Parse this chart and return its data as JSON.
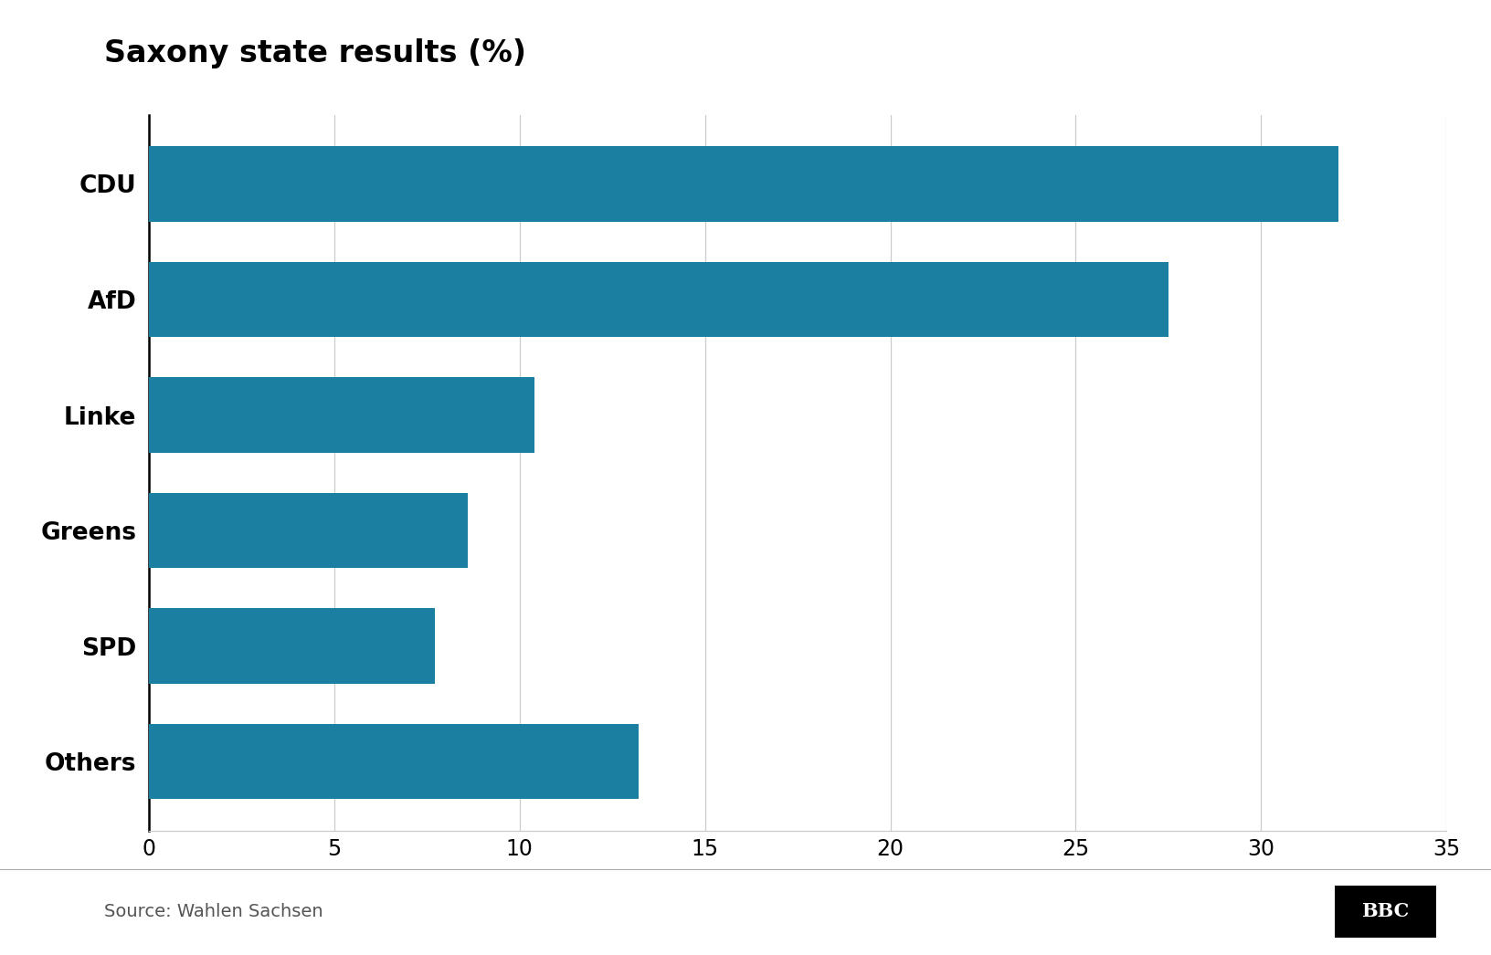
{
  "title": "Saxony state results (%)",
  "categories": [
    "CDU",
    "AfD",
    "Linke",
    "Greens",
    "SPD",
    "Others"
  ],
  "values": [
    32.1,
    27.5,
    10.4,
    8.6,
    7.7,
    13.2
  ],
  "bar_color": "#1a7fa0",
  "xlim": [
    0,
    35
  ],
  "xticks": [
    0,
    5,
    10,
    15,
    20,
    25,
    30,
    35
  ],
  "background_color": "#ffffff",
  "grid_color": "#cccccc",
  "title_fontsize": 24,
  "label_fontsize": 19,
  "tick_fontsize": 17,
  "source_text": "Source: Wahlen Sachsen",
  "source_fontsize": 14,
  "bbc_text": "BBC"
}
